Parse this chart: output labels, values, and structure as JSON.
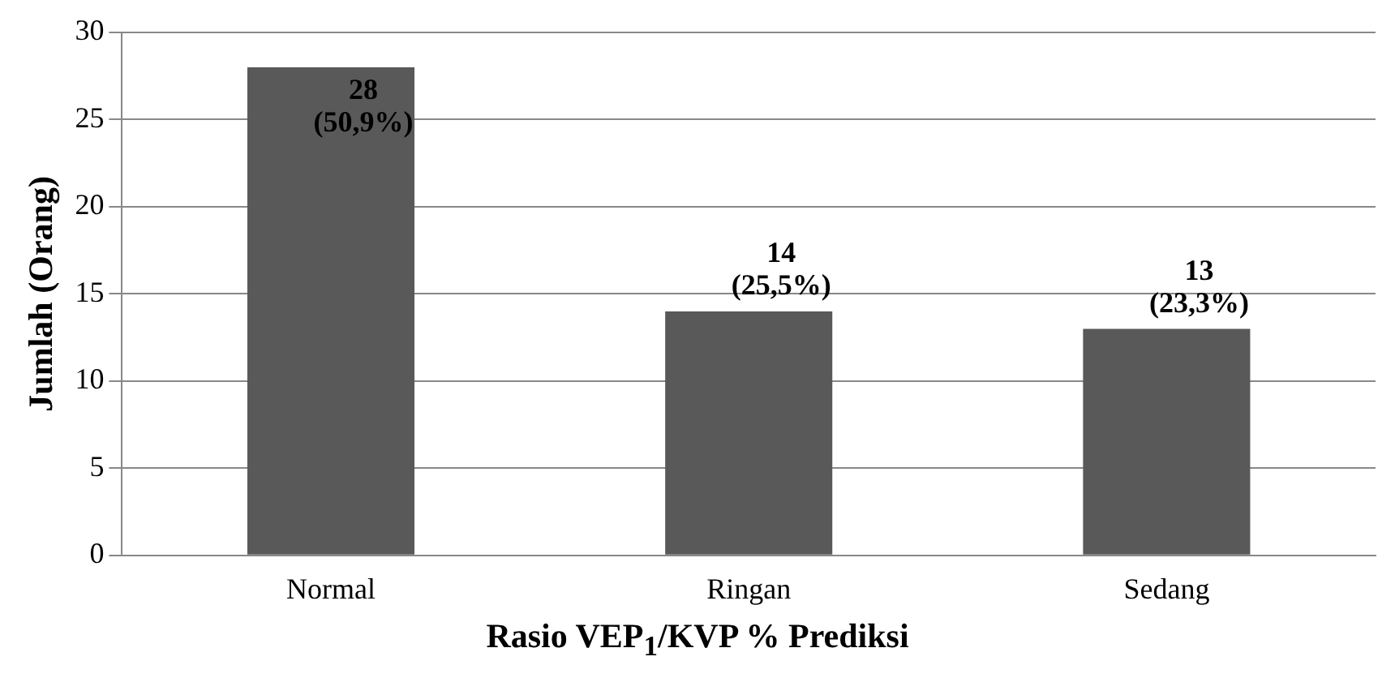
{
  "chart_data": {
    "type": "bar",
    "xlabel": "Rasio VEP$_{1}$/KVP % Prediksi",
    "ylabel": "Jumlah (Orang)",
    "categories": [
      "Normal",
      "Ringan",
      "Sedang"
    ],
    "values": [
      28,
      14,
      13
    ],
    "value_labels": [
      "28\n(50,9%)",
      "14\n(25,5%)",
      "13\n(23,3%)"
    ],
    "color": "#595959",
    "ylim": [
      0,
      30
    ],
    "yticks": [
      0,
      5,
      10,
      15,
      20,
      25,
      30
    ],
    "grid": "y",
    "legend": false
  }
}
